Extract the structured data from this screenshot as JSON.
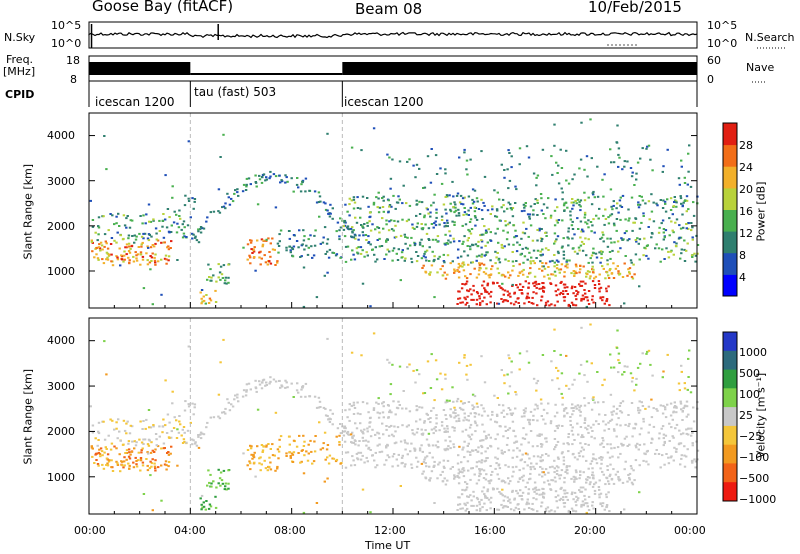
{
  "header": {
    "station": "Goose Bay (fitACF)",
    "beam": "Beam 08",
    "date": "10/Feb/2015"
  },
  "aux_labels": {
    "nsky": "N.Sky",
    "nsearch": "N.Search",
    "freq_line1": "Freq.",
    "freq_line2": "[MHz]",
    "nave": "Nave",
    "cpid": "CPID",
    "ticks_noise": [
      "10^5",
      "10^0"
    ],
    "ticks_noise_right": [
      "10^5",
      "10^0"
    ],
    "ticks_freq": [
      "18",
      "8"
    ],
    "ticks_nave": [
      "60",
      "0"
    ],
    "cpid_segments": [
      "icescan 1200",
      "tau (fast) 503",
      "icescan 1200"
    ]
  },
  "chart_data": [
    {
      "type": "heatmap",
      "name": "power-panel",
      "ylabel": "Slant Range [km]",
      "yticks": [
        1000,
        2000,
        3000,
        4000
      ],
      "ylim": [
        180,
        4500
      ],
      "xlim": [
        0,
        24
      ],
      "colorbar": {
        "label": "Power [dB]",
        "ticks": [
          "4",
          "8",
          "12",
          "16",
          "20",
          "24",
          "28"
        ],
        "colors": [
          "#0000ff",
          "#1f4fb8",
          "#2f7f6f",
          "#49b04f",
          "#b8d23a",
          "#f2b02a",
          "#f26e18",
          "#e11f12"
        ]
      }
    },
    {
      "type": "heatmap",
      "name": "velocity-panel",
      "ylabel": "Slant Range [km]",
      "yticks": [
        1000,
        2000,
        3000,
        4000
      ],
      "ylim": [
        180,
        4500
      ],
      "xlim": [
        0,
        24
      ],
      "xlabel": "Time UT",
      "xticks": [
        "00:00",
        "04:00",
        "08:00",
        "12:00",
        "16:00",
        "20:00",
        "00:00"
      ],
      "colorbar": {
        "label": "Velocity [m s⁻¹]",
        "ticks": [
          "1000",
          "500",
          "100",
          "25",
          "−25",
          "−100",
          "−500",
          "−1000"
        ],
        "colors": [
          "#2438c8",
          "#2d6b7d",
          "#2f9e3f",
          "#7ed24a",
          "#c8c8c8",
          "#f4c63a",
          "#f29a20",
          "#f26318",
          "#ee1a10"
        ]
      }
    }
  ]
}
